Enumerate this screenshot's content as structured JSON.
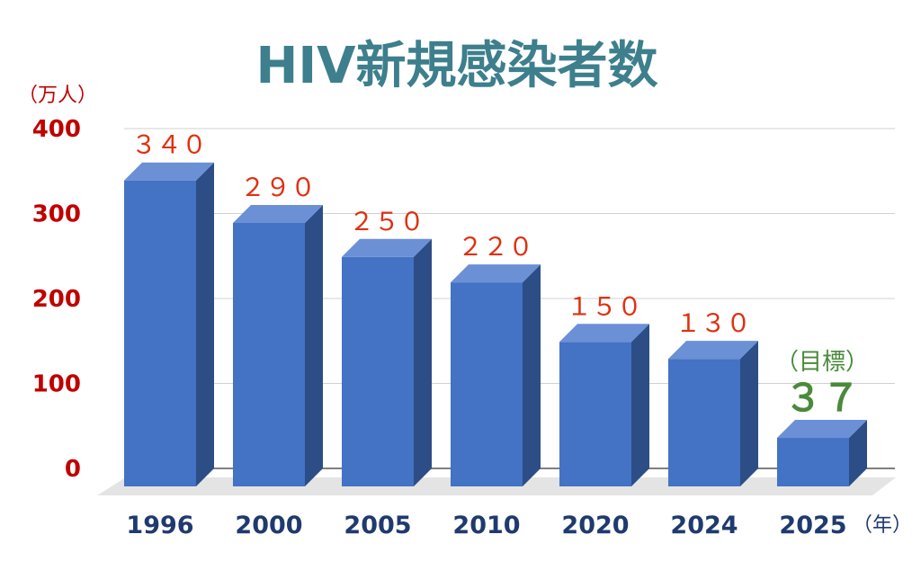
{
  "chart_data": {
    "type": "bar",
    "title": "HIV新規感染者数",
    "y_unit_label": "（万人）",
    "x_unit_label": "（年）",
    "categories": [
      "1996",
      "2000",
      "2005",
      "2010",
      "2020",
      "2024",
      "2025"
    ],
    "values": [
      340,
      290,
      250,
      220,
      150,
      130,
      37
    ],
    "value_labels": [
      "３４０",
      "２９０",
      "２５０",
      "２２０",
      "１５０",
      "１３０",
      "３７"
    ],
    "target_note": "（目標）",
    "target_index": 6,
    "yticks": [
      "0",
      "100",
      "200",
      "300",
      "400"
    ],
    "ylim": [
      0,
      400
    ],
    "grid": true,
    "legend": "none",
    "colors": {
      "title": "#3d7f8c",
      "axis_text": "#c00000",
      "x_text": "#1f3a6e",
      "value_label": "#e03010",
      "target_label": "#4a8a3a",
      "bar_front": "#4472c4",
      "bar_top": "#6b90d6",
      "bar_side": "#2c4d86",
      "grid": "#d0d0d0",
      "floor": "#e4e4e4"
    }
  }
}
